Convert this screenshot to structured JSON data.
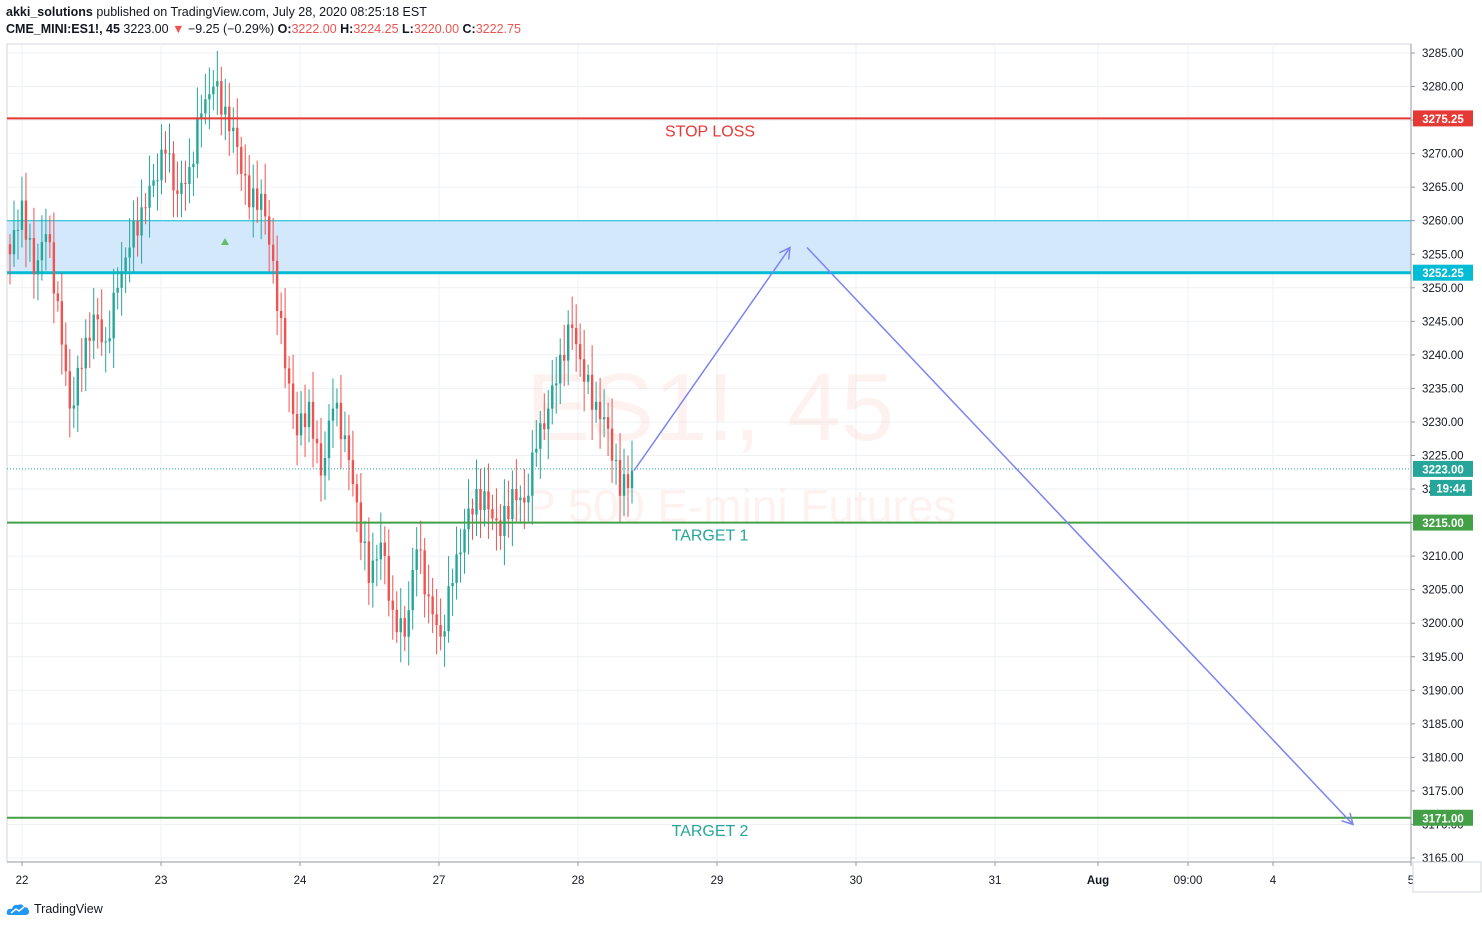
{
  "header": {
    "publisher": "akki_solutions",
    "published_text": " published on TradingView.com, July 28, 2020 08:25:18 EST",
    "symbol": "CME_MINI:ES1!, 45",
    "last": "3223.00",
    "change_arrow": "▼",
    "change": "−9.25 (−0.29%)",
    "o_label": "O:",
    "o_value": "3222.00",
    "h_label": "H:",
    "h_value": "3224.25",
    "l_label": "L:",
    "l_value": "3220.00",
    "c_label": "C:",
    "c_value": "3222.75"
  },
  "footer": {
    "brand": "TradingView",
    "logo_icon": "tradingview-cloud-icon"
  },
  "chart_data": {
    "type": "candlestick",
    "title": "",
    "watermark": {
      "symbol": "ES1!, 45",
      "description": "S&P 500 E-mini Futures"
    },
    "ylim": [
      3163,
      3288
    ],
    "y_ticks": [
      "3285.00",
      "3280.00",
      "3275.00",
      "3270.00",
      "3265.00",
      "3260.00",
      "3255.00",
      "3250.00",
      "3245.00",
      "3240.00",
      "3235.00",
      "3230.00",
      "3225.00",
      "3220.00",
      "3215.00",
      "3210.00",
      "3205.00",
      "3200.00",
      "3195.00",
      "3190.00",
      "3185.00",
      "3180.00",
      "3175.00",
      "3170.00",
      "3165.00"
    ],
    "x_ticks": [
      "22",
      "23",
      "24",
      "27",
      "28",
      "29",
      "30",
      "31",
      "Aug",
      "09:00",
      "4",
      "5"
    ],
    "colors": {
      "up": "#26a69a",
      "down": "#ef5350",
      "stop": "#e53935",
      "target": "#43a047",
      "zone_fill": "#cfe5fb",
      "zone_edge": "#00bcd4",
      "arrow": "#7b84f2",
      "grid": "#eef1f4"
    },
    "candles_close_path": [
      3255,
      3263,
      3252,
      3258,
      3248,
      3232,
      3238,
      3246,
      3242,
      3250,
      3256,
      3262,
      3266,
      3270,
      3264,
      3268,
      3276,
      3280,
      3277,
      3271,
      3262,
      3264,
      3254,
      3238,
      3228,
      3233,
      3222,
      3232,
      3228,
      3218,
      3206,
      3212,
      3202,
      3198,
      3211,
      3204,
      3198,
      3206,
      3214,
      3220,
      3217,
      3213,
      3220,
      3218,
      3226,
      3232,
      3240,
      3244,
      3236,
      3233,
      3229,
      3219,
      3222.75
    ],
    "levels": [
      {
        "name": "STOP LOSS",
        "price": 3275.25,
        "label": "3275.25"
      },
      {
        "name": "TARGET 1",
        "price": 3215.0,
        "label": "3215.00"
      },
      {
        "name": "TARGET 2",
        "price": 3171.0,
        "label": "3171.00"
      }
    ],
    "zone": {
      "top": 3260.0,
      "bottom": 3252.25,
      "label": "3252.25"
    },
    "last_price": {
      "label": "3223.00",
      "countdown": "19:44",
      "price": 3223.0
    },
    "arrows": [
      {
        "from": [
          "28",
          3222.75
        ],
        "to": [
          "29 end",
          3256
        ]
      },
      {
        "from": [
          "30",
          3256
        ],
        "to": [
          "4 end",
          3170
        ]
      }
    ]
  }
}
